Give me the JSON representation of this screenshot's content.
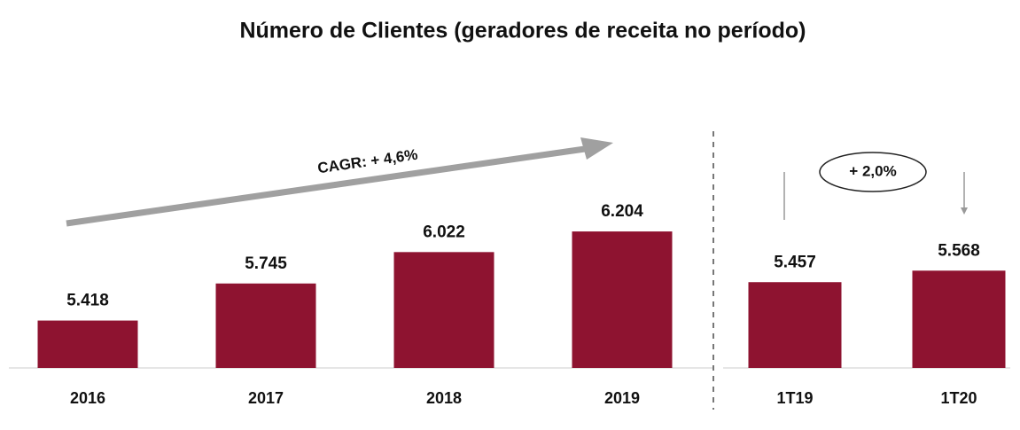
{
  "title": "Número de Clientes (geradores de receita no período)",
  "chart_data": [
    {
      "type": "bar",
      "annotation": "CAGR: + 4,6%",
      "categories": [
        "2016",
        "2017",
        "2018",
        "2019"
      ],
      "values": [
        5418,
        5745,
        6022,
        6204
      ],
      "value_labels": [
        "5.418",
        "5.745",
        "6.022",
        "6.204"
      ],
      "color": "#8e1330",
      "ylim": [
        5000,
        6400
      ]
    },
    {
      "type": "bar",
      "annotation": "+ 2,0%",
      "categories": [
        "1T19",
        "1T20"
      ],
      "values": [
        5457,
        5568
      ],
      "value_labels": [
        "5.457",
        "5.568"
      ],
      "color": "#8e1330",
      "ylim": [
        4630,
        6160
      ]
    }
  ]
}
